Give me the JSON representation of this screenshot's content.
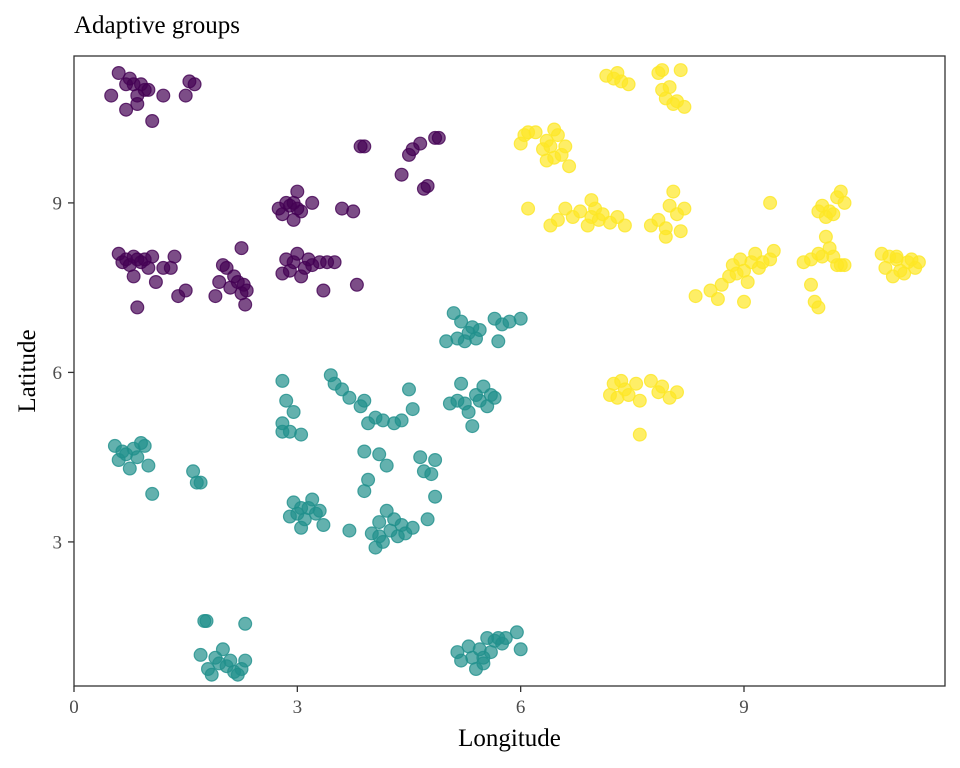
{
  "chart_data": {
    "type": "scatter",
    "title": "Adaptive groups",
    "xlabel": "Longitude",
    "ylabel": "Latitude",
    "xlim": [
      0,
      11.7
    ],
    "ylim": [
      0.45,
      11.6
    ],
    "xticks": [
      0,
      3,
      6,
      9
    ],
    "yticks": [
      3,
      6,
      9
    ],
    "grid": false,
    "legend": "none",
    "point_alpha": 0.7,
    "series": [
      {
        "color": "#440154",
        "points": [
          [
            0.5,
            10.9
          ],
          [
            0.6,
            11.3
          ],
          [
            0.7,
            11.1
          ],
          [
            0.75,
            11.2
          ],
          [
            0.8,
            11.1
          ],
          [
            0.85,
            10.9
          ],
          [
            0.9,
            11.1
          ],
          [
            0.95,
            11.0
          ],
          [
            1.0,
            11.0
          ],
          [
            0.7,
            10.65
          ],
          [
            0.85,
            10.75
          ],
          [
            1.05,
            10.45
          ],
          [
            1.2,
            10.9
          ],
          [
            1.5,
            10.9
          ],
          [
            1.55,
            11.15
          ],
          [
            1.62,
            11.1
          ],
          [
            0.6,
            8.1
          ],
          [
            0.65,
            7.95
          ],
          [
            0.7,
            8.0
          ],
          [
            0.75,
            7.9
          ],
          [
            0.8,
            7.7
          ],
          [
            0.8,
            8.05
          ],
          [
            0.85,
            8.0
          ],
          [
            0.9,
            7.95
          ],
          [
            0.95,
            8.0
          ],
          [
            1.0,
            7.85
          ],
          [
            1.05,
            8.05
          ],
          [
            1.1,
            7.6
          ],
          [
            1.2,
            7.85
          ],
          [
            1.3,
            7.85
          ],
          [
            1.35,
            8.05
          ],
          [
            1.4,
            7.35
          ],
          [
            1.5,
            7.45
          ],
          [
            0.85,
            7.15
          ],
          [
            1.9,
            7.35
          ],
          [
            1.95,
            7.6
          ],
          [
            2.0,
            7.9
          ],
          [
            2.05,
            7.85
          ],
          [
            2.1,
            7.5
          ],
          [
            2.15,
            7.7
          ],
          [
            2.2,
            7.6
          ],
          [
            2.25,
            7.4
          ],
          [
            2.28,
            7.55
          ],
          [
            2.3,
            7.2
          ],
          [
            2.32,
            7.45
          ],
          [
            2.25,
            8.2
          ],
          [
            2.75,
            8.9
          ],
          [
            2.8,
            8.8
          ],
          [
            2.85,
            9.0
          ],
          [
            2.9,
            8.95
          ],
          [
            2.95,
            8.7
          ],
          [
            3.0,
            9.2
          ],
          [
            3.05,
            8.85
          ],
          [
            2.95,
            9.0
          ],
          [
            3.0,
            8.9
          ],
          [
            3.2,
            9.0
          ],
          [
            3.6,
            8.9
          ],
          [
            3.75,
            8.85
          ],
          [
            2.8,
            7.75
          ],
          [
            2.85,
            8.0
          ],
          [
            2.9,
            7.8
          ],
          [
            2.95,
            7.95
          ],
          [
            3.0,
            8.1
          ],
          [
            3.05,
            7.7
          ],
          [
            3.1,
            7.85
          ],
          [
            3.15,
            8.0
          ],
          [
            3.2,
            7.9
          ],
          [
            3.3,
            7.95
          ],
          [
            3.35,
            7.45
          ],
          [
            3.4,
            7.95
          ],
          [
            3.5,
            7.95
          ],
          [
            3.8,
            7.55
          ],
          [
            3.85,
            10.0
          ],
          [
            3.9,
            10.0
          ],
          [
            4.4,
            9.5
          ],
          [
            4.5,
            9.85
          ],
          [
            4.55,
            9.95
          ],
          [
            4.65,
            10.05
          ],
          [
            4.7,
            9.25
          ],
          [
            4.75,
            9.3
          ],
          [
            4.85,
            10.15
          ],
          [
            4.9,
            10.15
          ]
        ]
      },
      {
        "color": "#21908c",
        "points": [
          [
            0.55,
            4.7
          ],
          [
            0.6,
            4.45
          ],
          [
            0.65,
            4.6
          ],
          [
            0.7,
            4.55
          ],
          [
            0.75,
            4.3
          ],
          [
            0.8,
            4.65
          ],
          [
            0.85,
            4.5
          ],
          [
            0.9,
            4.75
          ],
          [
            0.95,
            4.7
          ],
          [
            1.0,
            4.35
          ],
          [
            1.05,
            3.85
          ],
          [
            1.6,
            4.25
          ],
          [
            1.65,
            4.05
          ],
          [
            1.7,
            4.05
          ],
          [
            1.75,
            1.6
          ],
          [
            1.8,
            0.75
          ],
          [
            1.85,
            0.65
          ],
          [
            1.9,
            0.95
          ],
          [
            1.95,
            0.85
          ],
          [
            2.0,
            1.1
          ],
          [
            2.05,
            0.8
          ],
          [
            2.1,
            0.9
          ],
          [
            2.15,
            0.7
          ],
          [
            2.2,
            0.65
          ],
          [
            2.25,
            0.75
          ],
          [
            2.3,
            1.55
          ],
          [
            2.3,
            0.9
          ],
          [
            1.7,
            1.0
          ],
          [
            1.78,
            1.6
          ],
          [
            2.8,
            5.85
          ],
          [
            2.85,
            5.5
          ],
          [
            2.8,
            5.1
          ],
          [
            2.8,
            4.95
          ],
          [
            2.9,
            4.95
          ],
          [
            2.95,
            5.3
          ],
          [
            3.05,
            4.9
          ],
          [
            2.95,
            3.7
          ],
          [
            3.0,
            3.5
          ],
          [
            3.05,
            3.6
          ],
          [
            3.1,
            3.4
          ],
          [
            3.15,
            3.6
          ],
          [
            3.2,
            3.75
          ],
          [
            3.25,
            3.5
          ],
          [
            3.3,
            3.55
          ],
          [
            3.35,
            3.3
          ],
          [
            3.05,
            3.25
          ],
          [
            2.9,
            3.45
          ],
          [
            3.45,
            5.95
          ],
          [
            3.5,
            5.8
          ],
          [
            3.6,
            5.7
          ],
          [
            3.7,
            5.55
          ],
          [
            3.9,
            5.5
          ],
          [
            3.85,
            5.4
          ],
          [
            3.95,
            5.1
          ],
          [
            4.05,
            5.2
          ],
          [
            4.1,
            4.55
          ],
          [
            4.2,
            4.35
          ],
          [
            4.15,
            5.15
          ],
          [
            4.3,
            5.1
          ],
          [
            4.4,
            5.15
          ],
          [
            4.55,
            5.35
          ],
          [
            4.65,
            4.5
          ],
          [
            4.7,
            4.25
          ],
          [
            4.8,
            4.2
          ],
          [
            4.85,
            4.45
          ],
          [
            4.85,
            3.8
          ],
          [
            4.75,
            3.4
          ],
          [
            4.5,
            5.7
          ],
          [
            3.9,
            4.6
          ],
          [
            3.95,
            4.1
          ],
          [
            3.9,
            3.9
          ],
          [
            3.7,
            3.2
          ],
          [
            4.0,
            3.15
          ],
          [
            4.05,
            2.9
          ],
          [
            4.1,
            3.35
          ],
          [
            4.15,
            3.0
          ],
          [
            4.2,
            3.55
          ],
          [
            4.25,
            3.2
          ],
          [
            4.3,
            3.4
          ],
          [
            4.35,
            3.1
          ],
          [
            4.4,
            3.3
          ],
          [
            4.45,
            3.15
          ],
          [
            4.55,
            3.25
          ],
          [
            4.1,
            3.1
          ],
          [
            5.0,
            6.55
          ],
          [
            5.1,
            7.05
          ],
          [
            5.15,
            6.6
          ],
          [
            5.2,
            6.9
          ],
          [
            5.25,
            6.55
          ],
          [
            5.3,
            6.7
          ],
          [
            5.35,
            6.8
          ],
          [
            5.4,
            6.6
          ],
          [
            5.45,
            6.75
          ],
          [
            5.65,
            6.95
          ],
          [
            5.7,
            6.55
          ],
          [
            5.75,
            6.85
          ],
          [
            5.85,
            6.9
          ],
          [
            6.0,
            6.95
          ],
          [
            5.05,
            5.45
          ],
          [
            5.15,
            5.5
          ],
          [
            5.2,
            5.8
          ],
          [
            5.25,
            5.45
          ],
          [
            5.3,
            5.3
          ],
          [
            5.35,
            5.05
          ],
          [
            5.4,
            5.6
          ],
          [
            5.45,
            5.5
          ],
          [
            5.5,
            5.75
          ],
          [
            5.55,
            5.4
          ],
          [
            5.6,
            5.6
          ],
          [
            5.65,
            5.55
          ],
          [
            5.15,
            1.05
          ],
          [
            5.2,
            0.9
          ],
          [
            5.3,
            1.15
          ],
          [
            5.35,
            0.95
          ],
          [
            5.4,
            0.75
          ],
          [
            5.45,
            1.1
          ],
          [
            5.5,
            0.95
          ],
          [
            5.55,
            1.3
          ],
          [
            5.6,
            1.05
          ],
          [
            5.65,
            1.25
          ],
          [
            5.7,
            1.3
          ],
          [
            5.75,
            1.2
          ],
          [
            5.8,
            1.3
          ],
          [
            5.95,
            1.4
          ],
          [
            6.0,
            1.1
          ],
          [
            5.5,
            0.85
          ]
        ]
      },
      {
        "color": "#fde725",
        "points": [
          [
            6.0,
            10.05
          ],
          [
            6.05,
            10.2
          ],
          [
            6.1,
            10.25
          ],
          [
            6.2,
            10.25
          ],
          [
            6.3,
            9.95
          ],
          [
            6.35,
            10.1
          ],
          [
            6.4,
            10.0
          ],
          [
            6.45,
            9.8
          ],
          [
            6.5,
            10.2
          ],
          [
            6.55,
            9.85
          ],
          [
            6.6,
            10.0
          ],
          [
            6.65,
            9.65
          ],
          [
            6.35,
            9.75
          ],
          [
            6.45,
            10.3
          ],
          [
            6.1,
            8.9
          ],
          [
            6.4,
            8.6
          ],
          [
            6.5,
            8.7
          ],
          [
            6.6,
            8.9
          ],
          [
            6.7,
            8.75
          ],
          [
            6.8,
            8.85
          ],
          [
            6.9,
            8.6
          ],
          [
            6.95,
            8.75
          ],
          [
            7.0,
            8.9
          ],
          [
            7.05,
            8.7
          ],
          [
            7.1,
            8.8
          ],
          [
            7.2,
            8.65
          ],
          [
            7.3,
            8.75
          ],
          [
            7.4,
            8.6
          ],
          [
            6.95,
            9.05
          ],
          [
            7.15,
            11.25
          ],
          [
            7.25,
            11.2
          ],
          [
            7.35,
            11.15
          ],
          [
            7.45,
            11.1
          ],
          [
            7.3,
            11.3
          ],
          [
            7.85,
            11.3
          ],
          [
            7.9,
            11.35
          ],
          [
            8.0,
            11.05
          ],
          [
            8.1,
            10.8
          ],
          [
            8.15,
            11.35
          ],
          [
            8.2,
            10.7
          ],
          [
            7.95,
            10.85
          ],
          [
            8.05,
            10.75
          ],
          [
            7.9,
            11.0
          ],
          [
            7.75,
            8.6
          ],
          [
            7.85,
            8.7
          ],
          [
            7.95,
            8.55
          ],
          [
            8.0,
            8.95
          ],
          [
            8.05,
            9.2
          ],
          [
            8.1,
            8.8
          ],
          [
            8.15,
            8.5
          ],
          [
            8.2,
            8.9
          ],
          [
            7.95,
            8.4
          ],
          [
            7.2,
            5.6
          ],
          [
            7.25,
            5.8
          ],
          [
            7.3,
            5.55
          ],
          [
            7.35,
            5.85
          ],
          [
            7.4,
            5.7
          ],
          [
            7.45,
            5.6
          ],
          [
            7.55,
            5.8
          ],
          [
            7.6,
            5.5
          ],
          [
            7.75,
            5.85
          ],
          [
            7.85,
            5.65
          ],
          [
            7.9,
            5.75
          ],
          [
            8.0,
            5.55
          ],
          [
            8.1,
            5.65
          ],
          [
            7.6,
            4.9
          ],
          [
            8.35,
            7.35
          ],
          [
            8.55,
            7.45
          ],
          [
            8.7,
            7.55
          ],
          [
            8.8,
            7.7
          ],
          [
            8.85,
            7.9
          ],
          [
            8.9,
            7.75
          ],
          [
            8.95,
            8.0
          ],
          [
            9.0,
            7.8
          ],
          [
            9.05,
            7.6
          ],
          [
            9.1,
            7.95
          ],
          [
            9.15,
            8.1
          ],
          [
            9.2,
            7.85
          ],
          [
            9.25,
            7.95
          ],
          [
            9.35,
            8.0
          ],
          [
            9.4,
            8.15
          ],
          [
            9.0,
            7.25
          ],
          [
            8.65,
            7.3
          ],
          [
            9.35,
            9.0
          ],
          [
            9.8,
            7.95
          ],
          [
            9.9,
            7.55
          ],
          [
            9.95,
            7.25
          ],
          [
            10.0,
            7.15
          ],
          [
            10.05,
            8.05
          ],
          [
            10.1,
            8.4
          ],
          [
            10.15,
            8.2
          ],
          [
            10.2,
            8.05
          ],
          [
            10.25,
            7.9
          ],
          [
            9.9,
            8.0
          ],
          [
            10.0,
            8.1
          ],
          [
            10.0,
            8.85
          ],
          [
            10.05,
            8.95
          ],
          [
            10.1,
            8.75
          ],
          [
            10.15,
            8.85
          ],
          [
            10.2,
            8.8
          ],
          [
            10.25,
            9.1
          ],
          [
            10.3,
            9.2
          ],
          [
            10.35,
            9.0
          ],
          [
            10.3,
            7.9
          ],
          [
            10.35,
            7.9
          ],
          [
            10.85,
            8.1
          ],
          [
            10.9,
            7.85
          ],
          [
            10.95,
            8.05
          ],
          [
            11.0,
            7.7
          ],
          [
            11.05,
            8.0
          ],
          [
            11.1,
            7.8
          ],
          [
            11.15,
            7.75
          ],
          [
            11.2,
            7.95
          ],
          [
            11.25,
            8.0
          ],
          [
            11.3,
            7.85
          ],
          [
            11.35,
            7.95
          ],
          [
            11.05,
            8.05
          ]
        ]
      }
    ]
  }
}
